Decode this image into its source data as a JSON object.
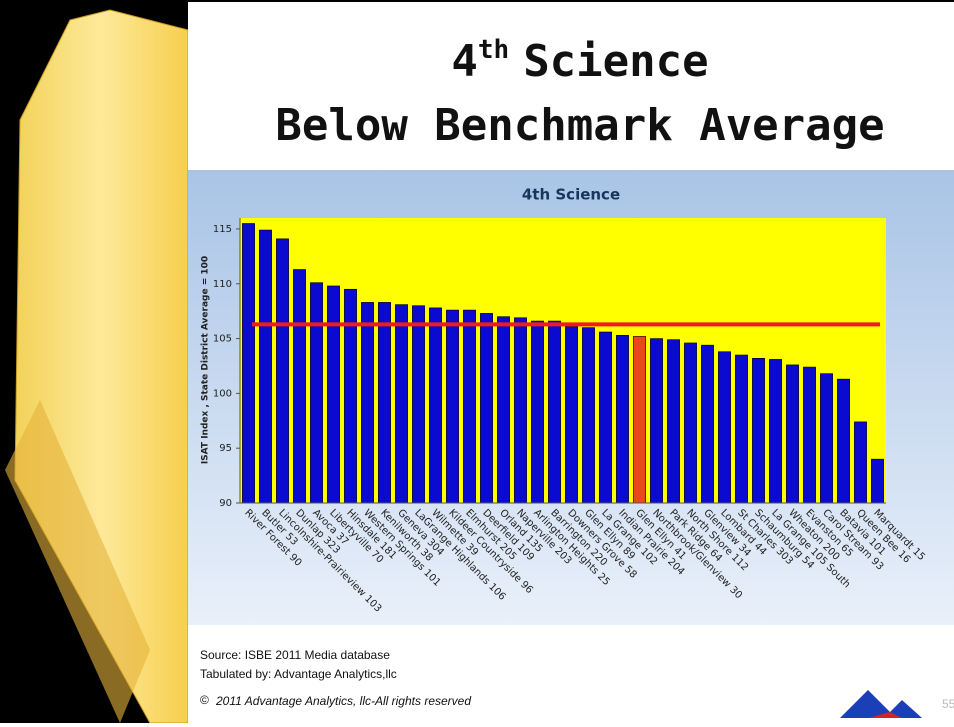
{
  "slide": {
    "title": {
      "number": "4",
      "suffix": "th",
      "rest": "Science",
      "line2": "Below Benchmark Average"
    },
    "source": "Source: ISBE 2011 Media database",
    "tabulated": "Tabulated by: Advantage Analytics,llc",
    "copyright_symbol": "©",
    "copyright": "2011 Advantage Analytics, llc-All rights reserved",
    "page_number": "55"
  },
  "chart_data": {
    "type": "bar",
    "title": "4th Science",
    "y_label": "ISAT Index , State District Average = 100",
    "categories": [
      "River Forest 90",
      "Butler 53",
      "Lincolnshire-Prairieview 103",
      "Dunlap 323",
      "Avoca 37",
      "Libertyville 70",
      "Hinsdale 181",
      "Western Springs 101",
      "Kenilworth 38",
      "Geneva 304",
      "LaGrange Highlands 106",
      "Wilmette 39",
      "Kildeer Countryside 96",
      "Elmhurst 205",
      "Deerfield 109",
      "Orland 135",
      "Naperville 203",
      "Arlington Heights 25",
      "Barrington 220",
      "Downers Grove 58",
      "Glen Ellyn 89",
      "La Grange 102",
      "Indian Prairie 204",
      "Glen Ellyn 41",
      "Northbrook/Glenview 30",
      "Park Ridge 64",
      "North Shore 112",
      "Glenview 34",
      "Lombard 44",
      "St Charles 303",
      "Schaumburg 54",
      "La Grange 105 South",
      "Wheaton 200",
      "Evanston 65",
      "Carol Stream 93",
      "Batavia 101",
      "Queen Bee 16",
      "Marquardt 15"
    ],
    "values": [
      115.5,
      114.9,
      114.1,
      111.3,
      110.1,
      109.8,
      109.5,
      108.3,
      108.3,
      108.1,
      108.0,
      107.8,
      107.6,
      107.6,
      107.3,
      107.0,
      106.9,
      106.6,
      106.6,
      106.1,
      106.0,
      105.6,
      105.3,
      105.2,
      105.0,
      104.9,
      104.6,
      104.4,
      103.8,
      103.5,
      103.2,
      103.1,
      102.6,
      102.4,
      101.8,
      101.3,
      97.4,
      94.0
    ],
    "colors": [
      "#0a0ad0",
      "#0a0ad0",
      "#0a0ad0",
      "#0a0ad0",
      "#0a0ad0",
      "#0a0ad0",
      "#0a0ad0",
      "#0a0ad0",
      "#0a0ad0",
      "#0a0ad0",
      "#0a0ad0",
      "#0a0ad0",
      "#0a0ad0",
      "#0a0ad0",
      "#0a0ad0",
      "#0a0ad0",
      "#0a0ad0",
      "#0a0ad0",
      "#0a0ad0",
      "#0a0ad0",
      "#0a0ad0",
      "#0a0ad0",
      "#0a0ad0",
      "#e8481c",
      "#0a0ad0",
      "#0a0ad0",
      "#0a0ad0",
      "#0a0ad0",
      "#0a0ad0",
      "#0a0ad0",
      "#0a0ad0",
      "#0a0ad0",
      "#0a0ad0",
      "#0a0ad0",
      "#0a0ad0",
      "#0a0ad0",
      "#0a0ad0",
      "#0a0ad0"
    ],
    "reference_line": {
      "value": 106.3,
      "color": "#ee1c1c"
    },
    "plot_background": "#ffff00",
    "ylim": [
      90,
      116
    ],
    "yticks": [
      90,
      95,
      100,
      105,
      110,
      115
    ]
  }
}
